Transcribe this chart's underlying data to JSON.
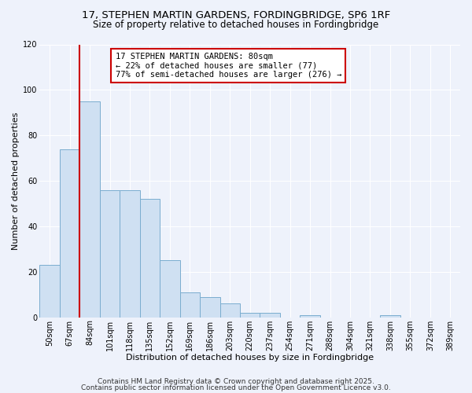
{
  "title1": "17, STEPHEN MARTIN GARDENS, FORDINGBRIDGE, SP6 1RF",
  "title2": "Size of property relative to detached houses in Fordingbridge",
  "xlabel": "Distribution of detached houses by size in Fordingbridge",
  "ylabel": "Number of detached properties",
  "bar_labels": [
    "50sqm",
    "67sqm",
    "84sqm",
    "101sqm",
    "118sqm",
    "135sqm",
    "152sqm",
    "169sqm",
    "186sqm",
    "203sqm",
    "220sqm",
    "237sqm",
    "254sqm",
    "271sqm",
    "288sqm",
    "304sqm",
    "321sqm",
    "338sqm",
    "355sqm",
    "372sqm",
    "389sqm"
  ],
  "bar_values": [
    23,
    74,
    95,
    56,
    56,
    52,
    25,
    11,
    9,
    6,
    2,
    2,
    0,
    1,
    0,
    0,
    0,
    1,
    0,
    0,
    0
  ],
  "bar_color": "#cfe0f2",
  "bar_edge_color": "#7aadcf",
  "vline_color": "#cc0000",
  "ylim": [
    0,
    120
  ],
  "yticks": [
    0,
    20,
    40,
    60,
    80,
    100,
    120
  ],
  "annotation_line1": "17 STEPHEN MARTIN GARDENS: 80sqm",
  "annotation_line2": "← 22% of detached houses are smaller (77)",
  "annotation_line3": "77% of semi-detached houses are larger (276) →",
  "annotation_box_color": "#ffffff",
  "annotation_box_edge": "#cc0000",
  "footer1": "Contains HM Land Registry data © Crown copyright and database right 2025.",
  "footer2": "Contains public sector information licensed under the Open Government Licence v3.0.",
  "bg_color": "#eef2fb",
  "grid_color": "#ffffff",
  "title_fontsize": 9.5,
  "subtitle_fontsize": 8.5,
  "axis_label_fontsize": 8,
  "tick_fontsize": 7,
  "annotation_fontsize": 7.5,
  "footer_fontsize": 6.5
}
